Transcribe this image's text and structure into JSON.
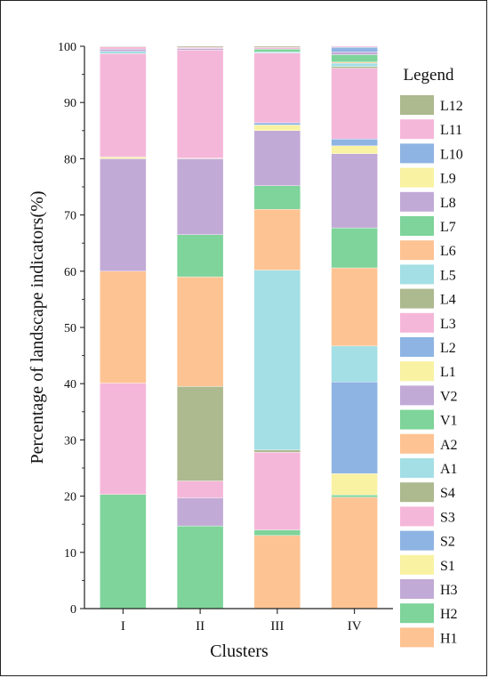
{
  "chart_data": {
    "type": "bar",
    "stacked": true,
    "title": "",
    "xlabel": "Clusters",
    "ylabel": "Percentage of landscape indicators(%)",
    "ylim": [
      0,
      100
    ],
    "yticks": [
      0,
      10,
      20,
      30,
      40,
      50,
      60,
      70,
      80,
      90,
      100
    ],
    "grid": false,
    "legend_title": "Legend",
    "legend_position": "right",
    "categories": [
      "I",
      "II",
      "III",
      "IV"
    ],
    "series": [
      {
        "name": "H1",
        "color": "#FEC393",
        "values": [
          0,
          0,
          13,
          19.8
        ]
      },
      {
        "name": "H2",
        "color": "#7ED49A",
        "values": [
          20.3,
          14.7,
          1,
          0.4
        ]
      },
      {
        "name": "H3",
        "color": "#C2AAD6",
        "values": [
          0,
          5,
          0,
          0
        ]
      },
      {
        "name": "S1",
        "color": "#F9F2A2",
        "values": [
          0,
          0,
          0,
          3.8
        ]
      },
      {
        "name": "S2",
        "color": "#8EB4E3",
        "values": [
          0,
          0,
          0,
          16.3
        ]
      },
      {
        "name": "S3",
        "color": "#F5B7D9",
        "values": [
          19.8,
          3,
          13.8,
          0
        ]
      },
      {
        "name": "S4",
        "color": "#ADB98E",
        "values": [
          0,
          16.8,
          0.4,
          0
        ]
      },
      {
        "name": "A1",
        "color": "#A3DFE4",
        "values": [
          0,
          0,
          32,
          6.4
        ]
      },
      {
        "name": "A2",
        "color": "#FEC393",
        "values": [
          19.9,
          19.5,
          10.8,
          13.9
        ]
      },
      {
        "name": "V1",
        "color": "#7ED49A",
        "values": [
          0,
          7.5,
          4.2,
          7.1
        ]
      },
      {
        "name": "V2",
        "color": "#C2AAD6",
        "values": [
          20,
          13.5,
          9.8,
          13.2
        ]
      },
      {
        "name": "L1",
        "color": "#F9F2A2",
        "values": [
          0.3,
          0.1,
          1,
          1.4
        ]
      },
      {
        "name": "L2",
        "color": "#8EB4E3",
        "values": [
          0,
          0,
          0.4,
          1.2
        ]
      },
      {
        "name": "L3",
        "color": "#F5B7D9",
        "values": [
          18.4,
          19.2,
          12.4,
          12.6
        ]
      },
      {
        "name": "L4",
        "color": "#ADB98E",
        "values": [
          0,
          0,
          0,
          0.3
        ]
      },
      {
        "name": "L5",
        "color": "#A3DFE4",
        "values": [
          0.4,
          0,
          0.2,
          0.6
        ]
      },
      {
        "name": "L6",
        "color": "#FEC393",
        "values": [
          0,
          0,
          0,
          0.2
        ]
      },
      {
        "name": "L7",
        "color": "#7ED49A",
        "values": [
          0,
          0,
          0.5,
          1.3
        ]
      },
      {
        "name": "L8",
        "color": "#C2AAD6",
        "values": [
          0.4,
          0.3,
          0,
          0.5
        ]
      },
      {
        "name": "L9",
        "color": "#F9F2A2",
        "values": [
          0,
          0,
          0,
          0
        ]
      },
      {
        "name": "L10",
        "color": "#8EB4E3",
        "values": [
          0,
          0,
          0,
          0.8
        ]
      },
      {
        "name": "L11",
        "color": "#F5B7D9",
        "values": [
          0.4,
          0.2,
          0.3,
          0.2
        ]
      },
      {
        "name": "L12",
        "color": "#ADB98E",
        "values": [
          0.1,
          0.2,
          0.2,
          0
        ]
      }
    ]
  }
}
